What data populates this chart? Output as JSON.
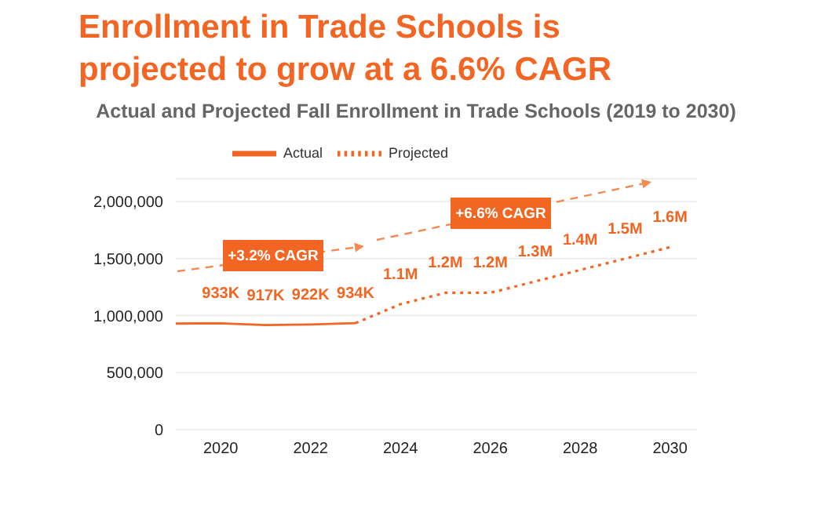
{
  "chart_data": {
    "type": "line",
    "title": "Enrollment in Trade Schools is projected to grow at a 6.6% CAGR",
    "subtitle": "Actual and Projected Fall Enrollment in Trade Schools (2019 to 2030)",
    "series": [
      {
        "name": "Actual",
        "color": "#f26522",
        "line_style": "solid",
        "x": [
          2019,
          2020,
          2021,
          2022,
          2023
        ],
        "values": [
          930000,
          933000,
          917000,
          922000,
          934000
        ],
        "value_labels": [
          null,
          "933K",
          "917K",
          "922K",
          "934K"
        ]
      },
      {
        "name": "Projected",
        "color": "#f26522",
        "line_style": "dotted",
        "x": [
          2023,
          2024,
          2025,
          2026,
          2027,
          2028,
          2029,
          2030
        ],
        "values": [
          934000,
          1100000,
          1200000,
          1200000,
          1300000,
          1400000,
          1500000,
          1600000
        ],
        "value_labels": [
          null,
          "1.1M",
          "1.2M",
          "1.2M",
          "1.3M",
          "1.4M",
          "1.5M",
          "1.6M"
        ]
      }
    ],
    "xlim": [
      2019,
      2030.6
    ],
    "xticks": [
      2020,
      2022,
      2024,
      2026,
      2028,
      2030
    ],
    "ylim": [
      0,
      2200000
    ],
    "yticks": [
      0,
      {
        "value": 500000,
        "label": "500,000"
      },
      {
        "value": 1000000,
        "label": "1,000,000"
      },
      {
        "value": 1500000,
        "label": "1,500,000"
      },
      {
        "value": 2000000,
        "label": "2,000,000"
      }
    ],
    "grid": "y",
    "legend": "top",
    "marker": "none",
    "annotations": [
      "+3.2% CAGR",
      "+6.6% CAGR"
    ]
  }
}
